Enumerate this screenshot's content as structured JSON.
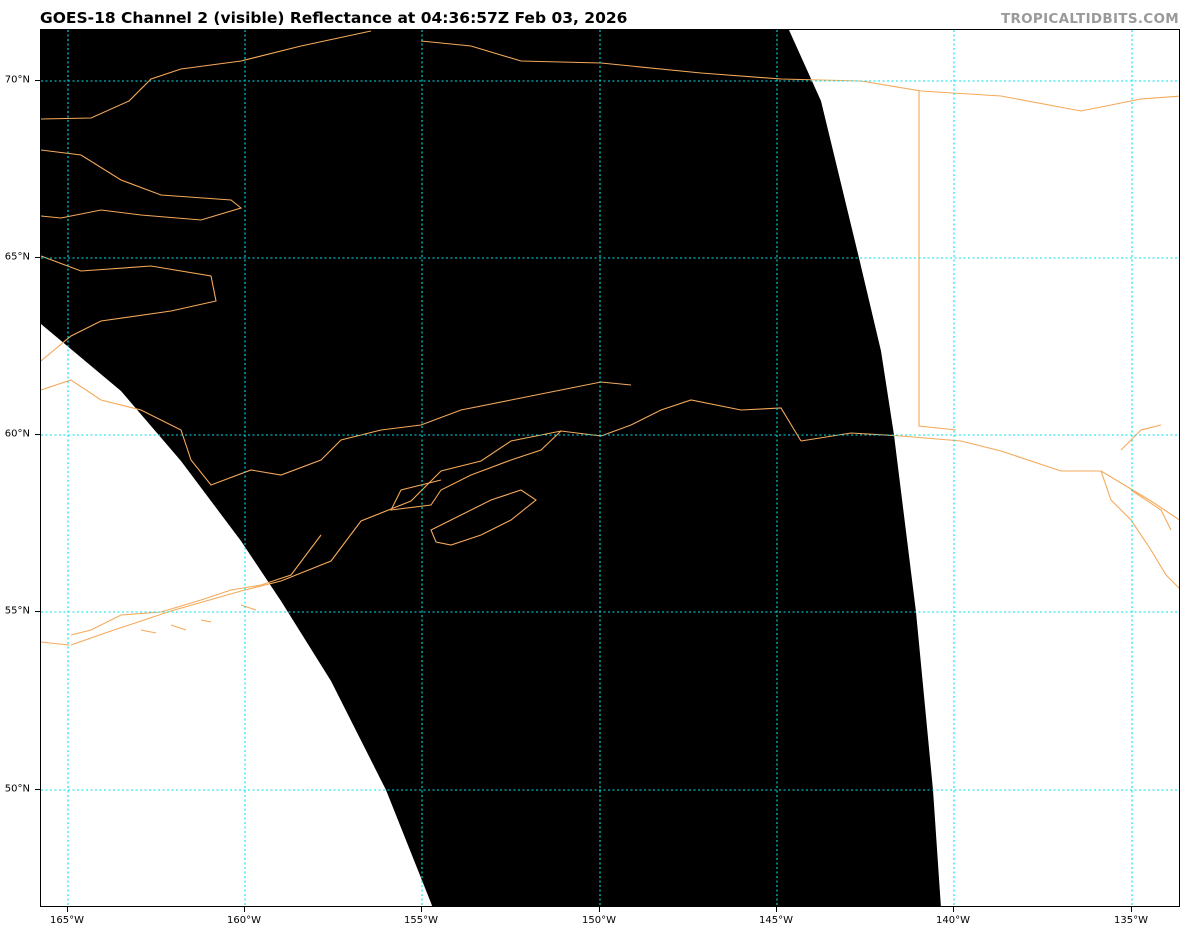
{
  "header": {
    "title": "GOES-18 Channel 2 (visible) Reflectance at 04:36:57Z Feb 03, 2026",
    "credit": "TROPICALTIDBITS.COM"
  },
  "map": {
    "projection": "satellite visible imagery, lat/lon grid",
    "extent": {
      "lon": [
        -165.75,
        -133.7
      ],
      "lat": [
        46.6,
        71.4
      ]
    },
    "lat_labels": [
      "70°N",
      "65°N",
      "60°N",
      "55°N",
      "50°N"
    ],
    "lon_labels": [
      "165°W",
      "160°W",
      "155°W",
      "150°W",
      "145°W",
      "140°W",
      "135°W"
    ],
    "colors": {
      "imagery": "#000000",
      "no_data": "#ffffff",
      "coastline": "#f4a95a",
      "gridline": "#00e5ee"
    }
  }
}
